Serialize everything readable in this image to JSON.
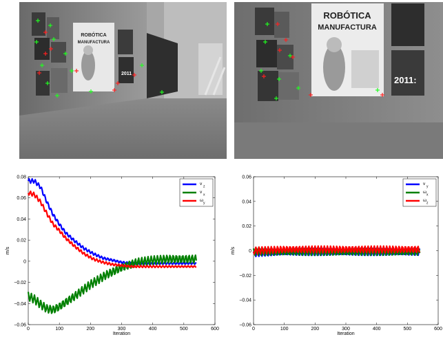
{
  "chart_data": [
    {
      "type": "line",
      "xlabel": "Iteration",
      "ylabel": "m/s",
      "xlim": [
        0,
        600
      ],
      "ylim": [
        -0.06,
        0.08
      ],
      "xticks": [
        0,
        100,
        200,
        300,
        400,
        500,
        600
      ],
      "yticks": [
        -0.06,
        -0.04,
        -0.02,
        0,
        0.02,
        0.04,
        0.06,
        0.08
      ],
      "ytick_labels": [
        "−0.06",
        "−0.04",
        "−0.02",
        "0",
        "0.02",
        "0.04",
        "0.06",
        "0.08"
      ],
      "legend_position": "top-right",
      "grid": false,
      "series": [
        {
          "name": "v",
          "subscript": "z",
          "color": "#0000ff",
          "x": [
            0,
            20,
            40,
            60,
            80,
            100,
            120,
            150,
            180,
            210,
            240,
            270,
            300,
            330,
            360,
            400,
            450,
            500,
            540
          ],
          "y": [
            0.076,
            0.076,
            0.07,
            0.056,
            0.044,
            0.035,
            0.027,
            0.019,
            0.012,
            0.007,
            0.003,
            0.001,
            -0.001,
            -0.002,
            -0.002,
            -0.002,
            -0.002,
            -0.002,
            -0.002
          ]
        },
        {
          "name": "v",
          "subscript": "x",
          "color": "#008000",
          "x": [
            0,
            20,
            40,
            60,
            80,
            100,
            150,
            200,
            250,
            300,
            350,
            400,
            450,
            500,
            540
          ],
          "y": [
            -0.033,
            -0.036,
            -0.041,
            -0.045,
            -0.046,
            -0.043,
            -0.033,
            -0.022,
            -0.013,
            -0.006,
            -0.001,
            0.001,
            0.002,
            0.002,
            0.002
          ]
        },
        {
          "name": "ω",
          "subscript": "y",
          "color": "#ff0000",
          "x": [
            0,
            20,
            40,
            60,
            80,
            100,
            120,
            150,
            180,
            210,
            240,
            270,
            300,
            330,
            360,
            400,
            450,
            500,
            540
          ],
          "y": [
            0.065,
            0.063,
            0.056,
            0.045,
            0.035,
            0.029,
            0.022,
            0.014,
            0.007,
            0.002,
            -0.001,
            -0.003,
            -0.004,
            -0.005,
            -0.005,
            -0.005,
            -0.005,
            -0.005,
            -0.005
          ]
        }
      ]
    },
    {
      "type": "line",
      "xlabel": "Iteration",
      "ylabel": "m/s",
      "xlim": [
        0,
        600
      ],
      "ylim": [
        -0.06,
        0.06
      ],
      "xticks": [
        0,
        100,
        200,
        300,
        400,
        500,
        600
      ],
      "yticks": [
        -0.06,
        -0.04,
        -0.02,
        0,
        0.02,
        0.04,
        0.06
      ],
      "ytick_labels": [
        "−0.06",
        "−0.04",
        "−0.02",
        "0",
        "0.02",
        "0.04",
        "0.06"
      ],
      "legend_position": "top-right",
      "grid": false,
      "series": [
        {
          "name": "v",
          "subscript": "y",
          "color": "#0000ff",
          "x": [
            0,
            100,
            200,
            300,
            400,
            540
          ],
          "y": [
            -0.002,
            -0.001,
            -0.001,
            -0.001,
            -0.001,
            -0.001
          ]
        },
        {
          "name": "ω",
          "subscript": "x",
          "color": "#008000",
          "x": [
            0,
            100,
            200,
            300,
            400,
            540
          ],
          "y": [
            -0.001,
            -0.001,
            -0.001,
            -0.001,
            -0.001,
            -0.001
          ]
        },
        {
          "name": "ω",
          "subscript": "z",
          "color": "#ff0000",
          "x": [
            0,
            100,
            200,
            300,
            400,
            540
          ],
          "y": [
            0.0,
            0.001,
            0.001,
            0.001,
            0.001,
            0.001
          ]
        }
      ]
    }
  ],
  "photos": {
    "left": {
      "poster_title_1": "ROBÓTICA",
      "poster_title_2": "MANUFACTURA",
      "magazine_year": "2011"
    },
    "right": {
      "poster_title_1": "ROBÓTICA",
      "poster_title_2": "MANUFACTURA",
      "magazine_year": "2011:"
    }
  }
}
